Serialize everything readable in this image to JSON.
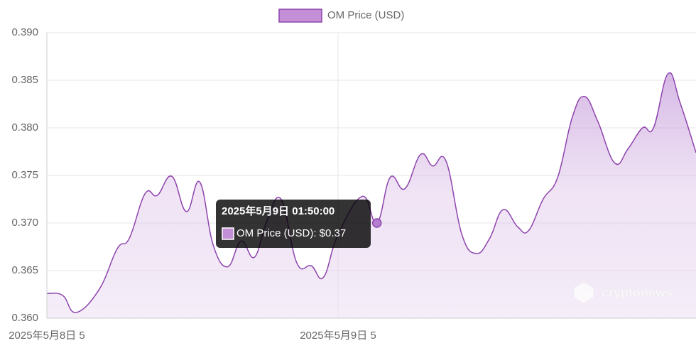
{
  "chart_data": {
    "type": "line",
    "series": [
      {
        "name": "OM Price (USD)",
        "color": "#8e44ad",
        "x": [
          0,
          1.3,
          2.4,
          4.3,
          5.8,
          6.8,
          8.1,
          9.1,
          10.3,
          11.5,
          12.6,
          13.7,
          14.9,
          16.0,
          17.1,
          18.1,
          19.3,
          20.6,
          21.8,
          22.8,
          24.0,
          26.0,
          27.2,
          28.3,
          29.5,
          30.8,
          31.8,
          32.9,
          34.2,
          35.4,
          36.5,
          37.6,
          38.8,
          39.7,
          40.9,
          42.1,
          43.3,
          44.3,
          45.4,
          46.8,
          47.9,
          49.1,
          50.0,
          51.2,
          52.2,
          53.5
        ],
        "values": [
          0.3626,
          0.3624,
          0.3606,
          0.363,
          0.3673,
          0.3684,
          0.3731,
          0.3729,
          0.3749,
          0.3712,
          0.3743,
          0.3677,
          0.3654,
          0.3681,
          0.3664,
          0.3701,
          0.3725,
          0.3658,
          0.3655,
          0.3643,
          0.3688,
          0.3728,
          0.37,
          0.3748,
          0.3736,
          0.3772,
          0.376,
          0.3765,
          0.3688,
          0.3668,
          0.3684,
          0.3714,
          0.3696,
          0.3692,
          0.3725,
          0.3748,
          0.3811,
          0.3833,
          0.3807,
          0.3763,
          0.3778,
          0.38,
          0.38,
          0.3857,
          0.3826,
          0.3774
        ]
      }
    ],
    "xlim": [
      0,
      53.5
    ],
    "xticks": [
      {
        "value": 0,
        "label": "2025年5月8日 5"
      },
      {
        "value": 24,
        "label": "2025年5月9日 5"
      }
    ],
    "ylim": [
      0.36,
      0.39
    ],
    "yticks": [
      {
        "value": 0.36,
        "label": "0.360"
      },
      0.365,
      {
        "value": 0.37,
        "label": "0.370"
      },
      0.375,
      {
        "value": 0.38,
        "label": "0.380"
      },
      0.385,
      {
        "value": 0.39,
        "label": "0.390"
      }
    ],
    "grid": true,
    "tooltip": {
      "title": "2025年5月9日 01:50:00",
      "label": "OM Price (USD): $0.37",
      "index": 22
    },
    "watermark": "cryptonews"
  }
}
